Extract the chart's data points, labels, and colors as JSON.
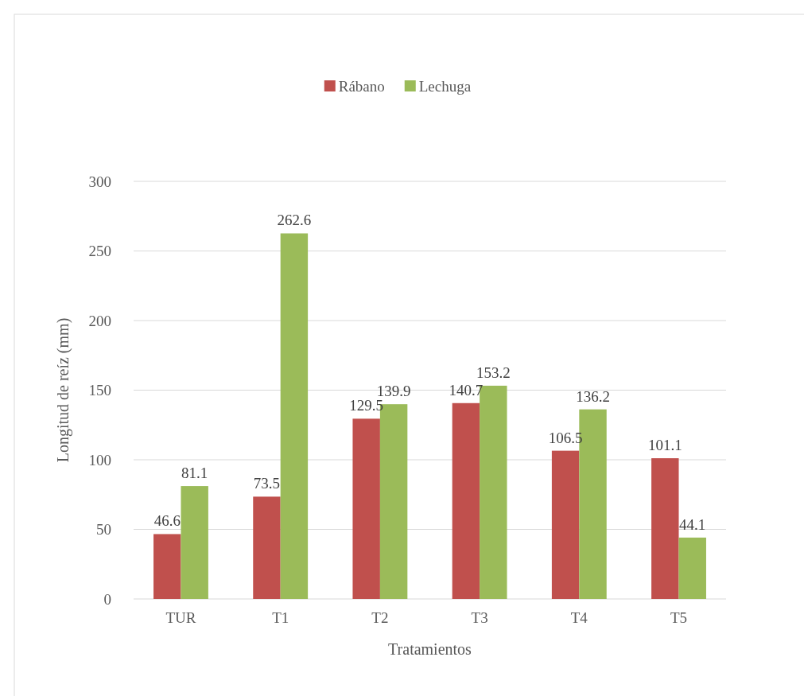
{
  "chart_data": {
    "type": "bar",
    "categories": [
      "TUR",
      "T1",
      "T2",
      "T3",
      "T4",
      "T5"
    ],
    "series": [
      {
        "name": "Rábano",
        "color": "#c0504d",
        "values": [
          46.6,
          73.5,
          129.5,
          140.7,
          106.5,
          101.1
        ]
      },
      {
        "name": "Lechuga",
        "color": "#9bbb59",
        "values": [
          81.1,
          262.6,
          139.9,
          153.2,
          136.2,
          44.1
        ]
      }
    ],
    "xlabel": "Tratamientos",
    "ylabel": "Longitud de reíz (mm)",
    "ylim": [
      0,
      300
    ],
    "yticks": [
      0,
      50,
      100,
      150,
      200,
      250,
      300
    ],
    "grid": "y",
    "legend": "top",
    "data_labels": true
  }
}
